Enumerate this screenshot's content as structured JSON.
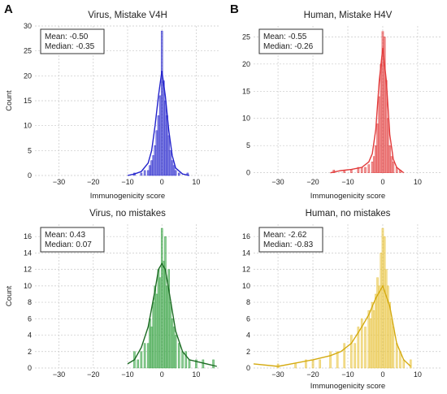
{
  "panel_labels": [
    "A",
    "B"
  ],
  "chart_data": [
    {
      "type": "bar",
      "title": "Virus, Mistake V4H",
      "xlabel": "Immunogenicity score",
      "ylabel": "Count",
      "xlim": [
        -37,
        17
      ],
      "ylim": [
        0,
        30
      ],
      "xticks": [
        -30,
        -20,
        -10,
        0,
        10
      ],
      "yticks": [
        0,
        5,
        10,
        15,
        20,
        25,
        30
      ],
      "grid": true,
      "color": "#2222cc",
      "annotation": [
        "Mean: -0.50",
        "Median: -0.35"
      ],
      "annotation_position": "top-left",
      "bin_width": 0.5,
      "bins": [
        {
          "x": -8,
          "y": 0.5
        },
        {
          "x": -6,
          "y": 0.5
        },
        {
          "x": -5,
          "y": 1
        },
        {
          "x": -4,
          "y": 1
        },
        {
          "x": -3.5,
          "y": 2
        },
        {
          "x": -3,
          "y": 3
        },
        {
          "x": -2.5,
          "y": 4
        },
        {
          "x": -2,
          "y": 6
        },
        {
          "x": -1.5,
          "y": 9
        },
        {
          "x": -1,
          "y": 12
        },
        {
          "x": -0.5,
          "y": 16
        },
        {
          "x": 0,
          "y": 29
        },
        {
          "x": 0.5,
          "y": 19
        },
        {
          "x": 1,
          "y": 15
        },
        {
          "x": 1.5,
          "y": 12
        },
        {
          "x": 2,
          "y": 8
        },
        {
          "x": 2.5,
          "y": 5
        },
        {
          "x": 3,
          "y": 3
        },
        {
          "x": 3.5,
          "y": 2
        },
        {
          "x": 4,
          "y": 1
        },
        {
          "x": 5,
          "y": 0.5
        },
        {
          "x": 7.5,
          "y": 0.5
        }
      ],
      "kde": [
        {
          "x": -10,
          "y": 0
        },
        {
          "x": -8,
          "y": 0.3
        },
        {
          "x": -6,
          "y": 0.8
        },
        {
          "x": -4,
          "y": 2.5
        },
        {
          "x": -3,
          "y": 5
        },
        {
          "x": -2,
          "y": 10
        },
        {
          "x": -1,
          "y": 16
        },
        {
          "x": 0,
          "y": 21
        },
        {
          "x": 1,
          "y": 16
        },
        {
          "x": 2,
          "y": 9
        },
        {
          "x": 3,
          "y": 4
        },
        {
          "x": 4,
          "y": 1.5
        },
        {
          "x": 6,
          "y": 0.3
        },
        {
          "x": 8,
          "y": 0
        }
      ]
    },
    {
      "type": "bar",
      "title": "Human, Mistake H4V",
      "xlabel": "Immunogenicity score",
      "ylabel": "",
      "xlim": [
        -37,
        17
      ],
      "ylim": [
        -0.5,
        27
      ],
      "xticks": [
        -30,
        -20,
        -10,
        0,
        10
      ],
      "yticks": [
        0,
        5,
        10,
        15,
        20,
        25
      ],
      "grid": true,
      "color": "#e23a3a",
      "annotation": [
        "Mean: -0.55",
        "Median: -0.26"
      ],
      "annotation_position": "top-left",
      "bin_width": 0.5,
      "bins": [
        {
          "x": -14,
          "y": 0.5
        },
        {
          "x": -11,
          "y": 0.5
        },
        {
          "x": -9,
          "y": 0.5
        },
        {
          "x": -7,
          "y": 1
        },
        {
          "x": -6,
          "y": 1
        },
        {
          "x": -5,
          "y": 1
        },
        {
          "x": -4,
          "y": 1.5
        },
        {
          "x": -3,
          "y": 2
        },
        {
          "x": -2.5,
          "y": 3
        },
        {
          "x": -2,
          "y": 5
        },
        {
          "x": -1.5,
          "y": 9
        },
        {
          "x": -1,
          "y": 14
        },
        {
          "x": -0.5,
          "y": 20
        },
        {
          "x": 0,
          "y": 26
        },
        {
          "x": 0.5,
          "y": 25
        },
        {
          "x": 1,
          "y": 17
        },
        {
          "x": 1.5,
          "y": 10
        },
        {
          "x": 2,
          "y": 5
        },
        {
          "x": 2.5,
          "y": 3
        },
        {
          "x": 3,
          "y": 2
        },
        {
          "x": 4,
          "y": 1
        },
        {
          "x": 5,
          "y": 0.5
        }
      ],
      "kde": [
        {
          "x": -15,
          "y": 0
        },
        {
          "x": -12,
          "y": 0.4
        },
        {
          "x": -9,
          "y": 0.6
        },
        {
          "x": -6,
          "y": 1
        },
        {
          "x": -4,
          "y": 2
        },
        {
          "x": -3,
          "y": 3.5
        },
        {
          "x": -2,
          "y": 8
        },
        {
          "x": -1,
          "y": 17
        },
        {
          "x": 0,
          "y": 23
        },
        {
          "x": 1,
          "y": 17
        },
        {
          "x": 2,
          "y": 7
        },
        {
          "x": 3,
          "y": 2.5
        },
        {
          "x": 4,
          "y": 1
        },
        {
          "x": 6,
          "y": 0
        }
      ]
    },
    {
      "type": "bar",
      "title": "Virus, no mistakes",
      "xlabel": "",
      "ylabel": "Count",
      "xlim": [
        -37,
        17
      ],
      "ylim": [
        0,
        17.5
      ],
      "xticks": [
        -30,
        -20,
        -10,
        0,
        10
      ],
      "yticks": [
        0,
        2,
        4,
        6,
        8,
        10,
        12,
        14,
        16
      ],
      "grid": true,
      "color": "#2e9e3a",
      "line_color": "#1d6b24",
      "annotation": [
        "Mean: 0.43",
        "Median: 0.07"
      ],
      "annotation_position": "top-left",
      "bin_width": 0.5,
      "bins": [
        {
          "x": -8,
          "y": 2
        },
        {
          "x": -7,
          "y": 1
        },
        {
          "x": -6,
          "y": 2
        },
        {
          "x": -5,
          "y": 3
        },
        {
          "x": -4,
          "y": 3
        },
        {
          "x": -3.5,
          "y": 6
        },
        {
          "x": -3,
          "y": 5
        },
        {
          "x": -2.5,
          "y": 8
        },
        {
          "x": -2,
          "y": 10
        },
        {
          "x": -1.5,
          "y": 9
        },
        {
          "x": -1,
          "y": 12
        },
        {
          "x": -0.5,
          "y": 11
        },
        {
          "x": 0,
          "y": 17
        },
        {
          "x": 0.5,
          "y": 13
        },
        {
          "x": 1,
          "y": 16
        },
        {
          "x": 1.5,
          "y": 10
        },
        {
          "x": 2,
          "y": 12
        },
        {
          "x": 2.5,
          "y": 8
        },
        {
          "x": 3,
          "y": 6
        },
        {
          "x": 3.5,
          "y": 5
        },
        {
          "x": 4,
          "y": 4
        },
        {
          "x": 5,
          "y": 3
        },
        {
          "x": 6,
          "y": 2
        },
        {
          "x": 7,
          "y": 2
        },
        {
          "x": 8,
          "y": 1
        },
        {
          "x": 10,
          "y": 1
        },
        {
          "x": 12,
          "y": 1
        },
        {
          "x": 15,
          "y": 1
        }
      ],
      "kde": [
        {
          "x": -10,
          "y": 0.5
        },
        {
          "x": -8,
          "y": 1
        },
        {
          "x": -6,
          "y": 2.5
        },
        {
          "x": -4,
          "y": 5
        },
        {
          "x": -2,
          "y": 9.5
        },
        {
          "x": -1,
          "y": 12
        },
        {
          "x": 0,
          "y": 12.7
        },
        {
          "x": 1,
          "y": 12
        },
        {
          "x": 2,
          "y": 9.5
        },
        {
          "x": 4,
          "y": 4.5
        },
        {
          "x": 6,
          "y": 2
        },
        {
          "x": 8,
          "y": 1
        },
        {
          "x": 12,
          "y": 0.6
        },
        {
          "x": 16,
          "y": 0.2
        }
      ]
    },
    {
      "type": "bar",
      "title": "Human, no mistakes",
      "xlabel": "Immunogenicity score",
      "ylabel": "",
      "xlim": [
        -37,
        17
      ],
      "ylim": [
        0,
        17.5
      ],
      "xticks": [
        -30,
        -20,
        -10,
        0,
        10
      ],
      "yticks": [
        0,
        2,
        4,
        6,
        8,
        10,
        12,
        14,
        16
      ],
      "grid": true,
      "color": "#e8c23a",
      "line_color": "#d4aa10",
      "annotation": [
        "Mean: -2.62",
        "Median: -0.83"
      ],
      "annotation_position": "top-left",
      "bin_width": 0.5,
      "bins": [
        {
          "x": -30,
          "y": 0.5
        },
        {
          "x": -25,
          "y": 0.5
        },
        {
          "x": -22,
          "y": 1
        },
        {
          "x": -20,
          "y": 1
        },
        {
          "x": -18,
          "y": 1
        },
        {
          "x": -15,
          "y": 2
        },
        {
          "x": -13,
          "y": 2
        },
        {
          "x": -11,
          "y": 3
        },
        {
          "x": -9,
          "y": 4
        },
        {
          "x": -8,
          "y": 3
        },
        {
          "x": -7,
          "y": 5
        },
        {
          "x": -6,
          "y": 6
        },
        {
          "x": -5,
          "y": 5
        },
        {
          "x": -4,
          "y": 7
        },
        {
          "x": -3.5,
          "y": 6
        },
        {
          "x": -3,
          "y": 8
        },
        {
          "x": -2.5,
          "y": 7
        },
        {
          "x": -2,
          "y": 9
        },
        {
          "x": -1.5,
          "y": 11
        },
        {
          "x": -1,
          "y": 10
        },
        {
          "x": -0.5,
          "y": 14
        },
        {
          "x": 0,
          "y": 17
        },
        {
          "x": 0.5,
          "y": 16
        },
        {
          "x": 1,
          "y": 12
        },
        {
          "x": 1.5,
          "y": 10
        },
        {
          "x": 2,
          "y": 8
        },
        {
          "x": 2.5,
          "y": 6
        },
        {
          "x": 3,
          "y": 5
        },
        {
          "x": 4,
          "y": 3
        },
        {
          "x": 5,
          "y": 2
        },
        {
          "x": 6,
          "y": 1
        },
        {
          "x": 8,
          "y": 1
        }
      ],
      "kde": [
        {
          "x": -37,
          "y": 0.5
        },
        {
          "x": -30,
          "y": 0.2
        },
        {
          "x": -25,
          "y": 0.6
        },
        {
          "x": -20,
          "y": 1
        },
        {
          "x": -15,
          "y": 1.5
        },
        {
          "x": -12,
          "y": 2
        },
        {
          "x": -9,
          "y": 3
        },
        {
          "x": -6,
          "y": 5
        },
        {
          "x": -4,
          "y": 6.5
        },
        {
          "x": -2,
          "y": 8.5
        },
        {
          "x": 0,
          "y": 10
        },
        {
          "x": 2,
          "y": 7.5
        },
        {
          "x": 4,
          "y": 3
        },
        {
          "x": 6,
          "y": 1
        },
        {
          "x": 8,
          "y": 0.2
        }
      ]
    }
  ]
}
